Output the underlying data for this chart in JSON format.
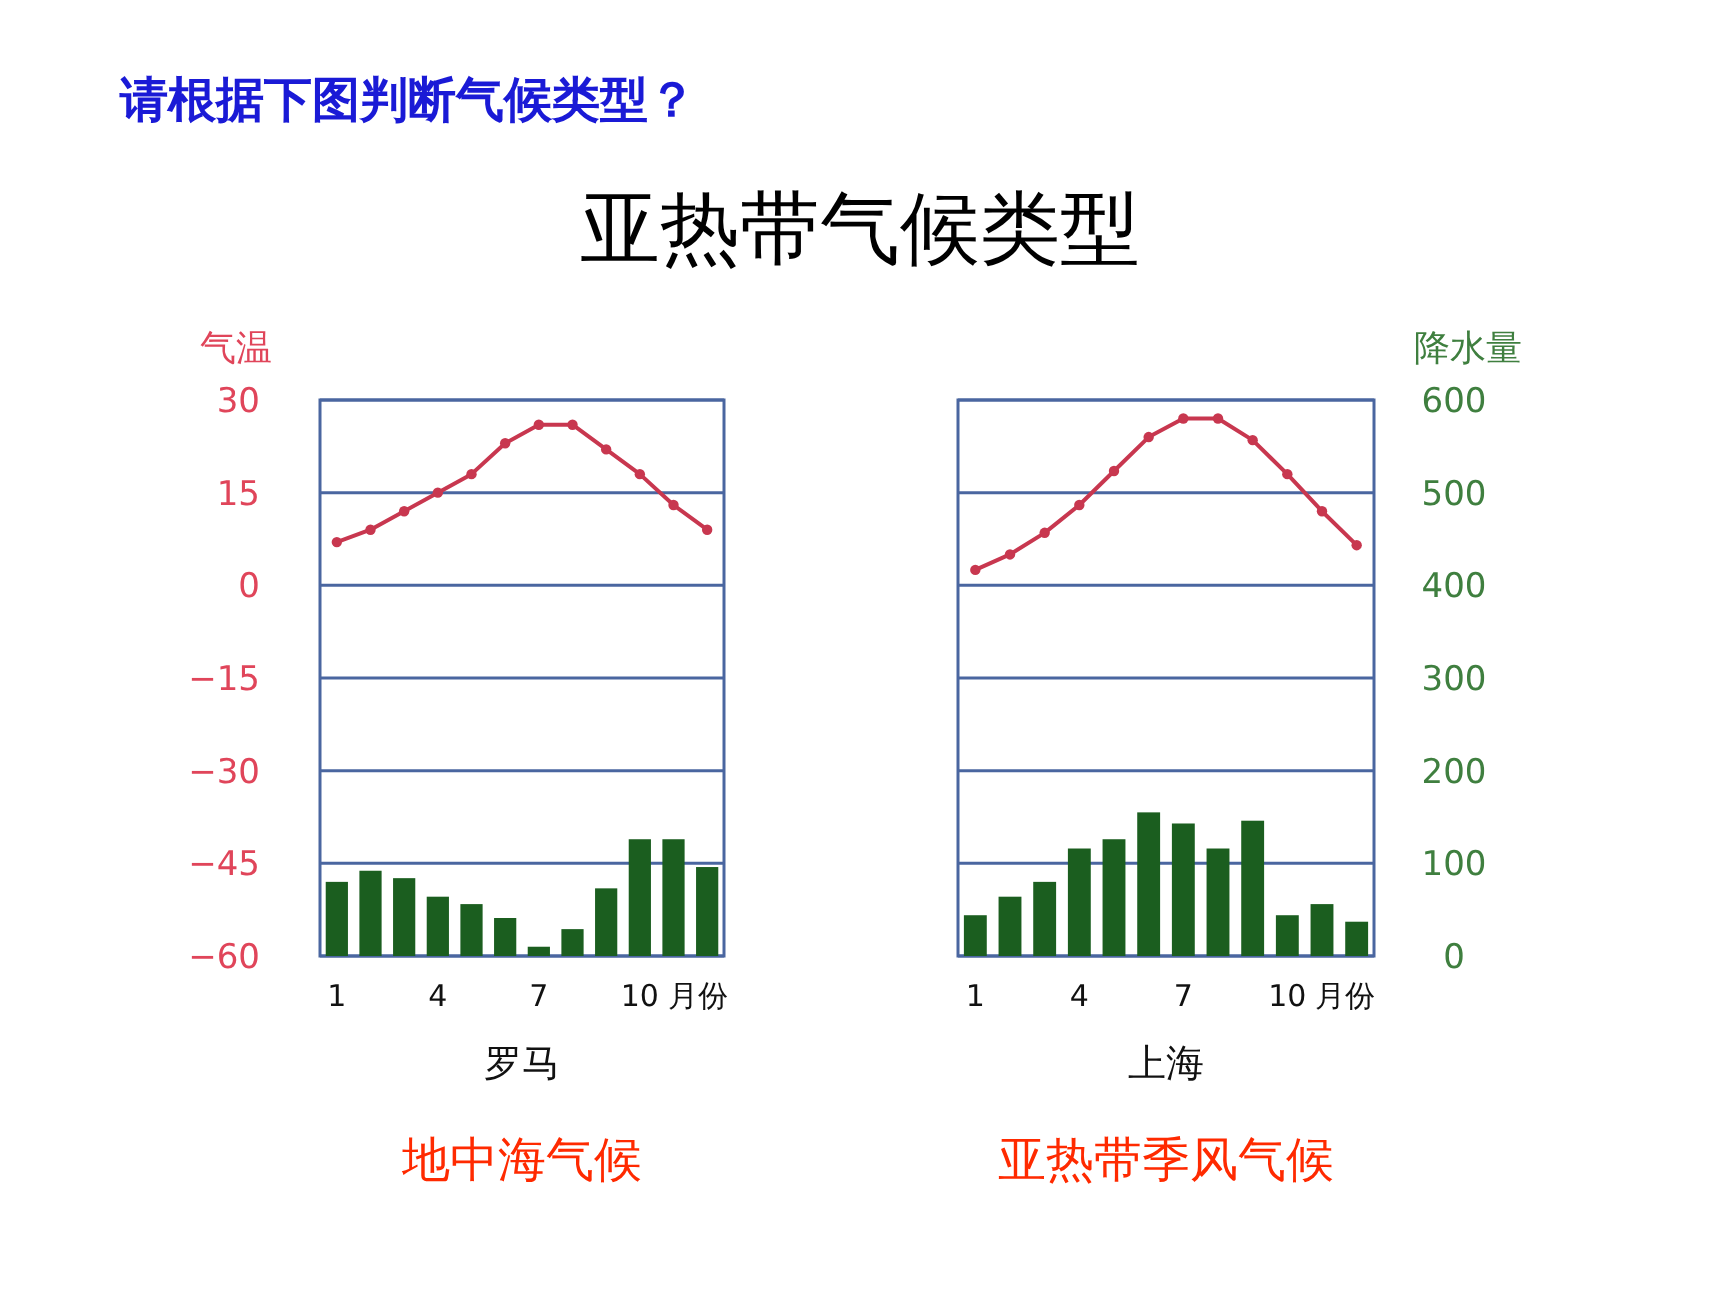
{
  "chart_data": [
    {
      "type": "bar",
      "title": "罗马",
      "xlabel": "月份",
      "ylabel": "气温",
      "annotations": [
        "请根据下图判断气候类型？",
        "亚热带气候类型",
        "地中海气候"
      ],
      "categories": [
        "1",
        null,
        null,
        "4",
        null,
        null,
        "7",
        null,
        null,
        "10",
        null,
        null
      ],
      "series": [
        {
          "type": "line",
          "color": "#c8374f",
          "values": [
            7,
            9,
            12,
            15,
            18,
            23,
            26,
            26,
            22,
            18,
            13,
            9
          ]
        },
        {
          "axis": "y2",
          "color": "#1b5e1f",
          "values": [
            80,
            92,
            84,
            64,
            56,
            41,
            10,
            29,
            73,
            126,
            126,
            96
          ]
        }
      ],
      "ylim": [
        -60,
        30
      ],
      "yticks": [
        -60,
        -45,
        -30,
        -15,
        0,
        15,
        30
      ],
      "y2lim": [
        0,
        600
      ],
      "grid": "y",
      "marker": "circle"
    },
    {
      "type": "bar",
      "title": "上海",
      "xlabel": "月份",
      "y2label": "降水量",
      "annotations": [
        "亚热带季风气候"
      ],
      "categories": [
        "1",
        null,
        null,
        "4",
        null,
        null,
        "7",
        null,
        null,
        "10",
        null,
        null
      ],
      "series": [
        {
          "type": "line",
          "color": "#c8374f",
          "values": [
            2.5,
            5,
            8.5,
            13,
            18.5,
            24,
            27,
            27,
            23.5,
            18,
            12,
            6.5
          ]
        },
        {
          "axis": "y2",
          "color": "#1b5e1f",
          "values": [
            44,
            64,
            80,
            116,
            126,
            155,
            143,
            116,
            146,
            44,
            56,
            37
          ]
        }
      ],
      "ylim": [
        -60,
        30
      ],
      "y2lim": [
        0,
        600
      ],
      "y2ticks": [
        0,
        100,
        200,
        300,
        400,
        500,
        600
      ],
      "grid": "y",
      "marker": "circle"
    }
  ]
}
